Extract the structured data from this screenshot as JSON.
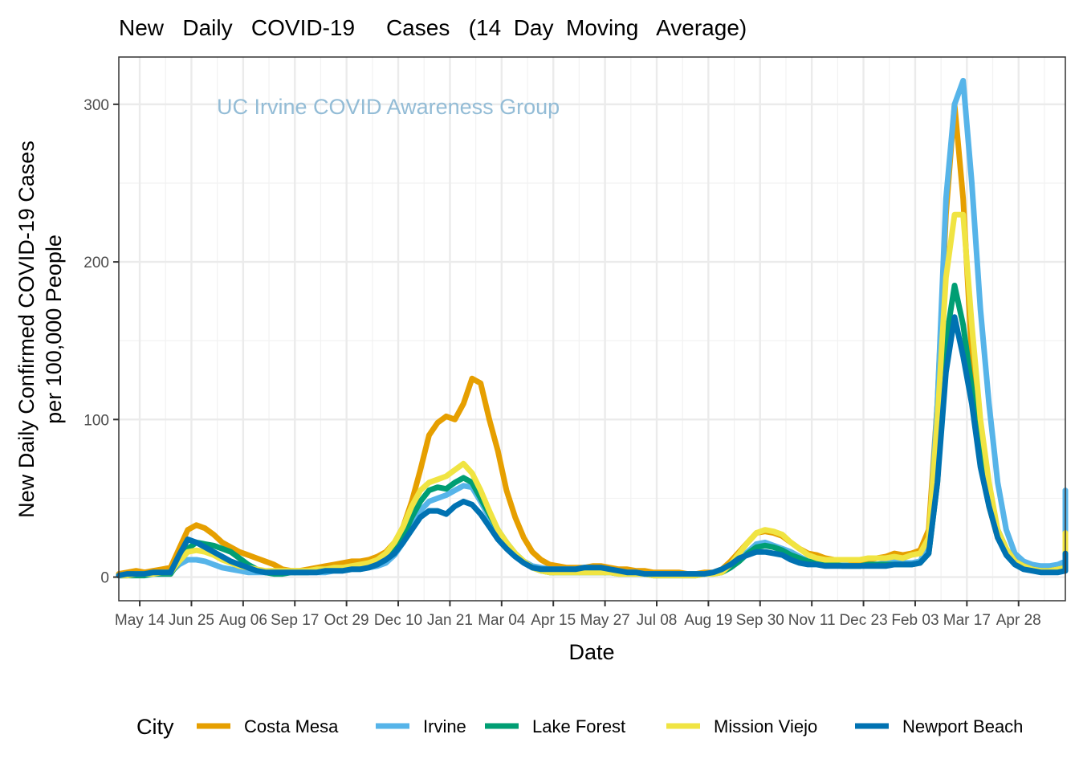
{
  "chart_data": {
    "type": "line",
    "title": "New   Daily   COVID-19     Cases   (14  Day  Moving   Average)",
    "xlabel": "Date",
    "ylabel_lines": [
      "New Daily Confirmed COVID-19 Cases",
      "per 100,000 People"
    ],
    "annotation": "UC Irvine COVID Awareness Group",
    "x_start_date": "2020-04-27",
    "x_step_days": 7,
    "xlim_days": [
      0,
      769
    ],
    "ylim": [
      -15,
      330
    ],
    "yticks": [
      0,
      100,
      200,
      300
    ],
    "ygrid_minor": [
      50,
      150,
      250
    ],
    "xticks": [
      {
        "day": 17,
        "label": "May 14"
      },
      {
        "day": 59,
        "label": "Jun 25"
      },
      {
        "day": 101,
        "label": "Aug 06"
      },
      {
        "day": 143,
        "label": "Sep 17"
      },
      {
        "day": 185,
        "label": "Oct 29"
      },
      {
        "day": 227,
        "label": "Dec 10"
      },
      {
        "day": 269,
        "label": "Jan 21"
      },
      {
        "day": 311,
        "label": "Mar 04"
      },
      {
        "day": 353,
        "label": "Apr 15"
      },
      {
        "day": 395,
        "label": "May 27"
      },
      {
        "day": 437,
        "label": "Jul 08"
      },
      {
        "day": 479,
        "label": "Aug 19"
      },
      {
        "day": 521,
        "label": "Sep 30"
      },
      {
        "day": 563,
        "label": "Nov 11"
      },
      {
        "day": 605,
        "label": "Dec 23"
      },
      {
        "day": 647,
        "label": "Feb 03"
      },
      {
        "day": 689,
        "label": "Mar 17"
      },
      {
        "day": 731,
        "label": "Apr 28"
      }
    ],
    "grid": true,
    "legend": {
      "title": "City",
      "position": "bottom"
    },
    "series": [
      {
        "name": "Costa Mesa",
        "color": "#E69F00",
        "values": [
          2,
          3,
          4,
          3,
          4,
          5,
          6,
          18,
          30,
          33,
          31,
          27,
          22,
          19,
          16,
          14,
          12,
          10,
          8,
          5,
          4,
          4,
          5,
          6,
          7,
          8,
          9,
          10,
          10,
          11,
          13,
          16,
          22,
          32,
          48,
          68,
          90,
          98,
          102,
          100,
          110,
          126,
          123,
          100,
          80,
          55,
          38,
          25,
          16,
          11,
          8,
          7,
          6,
          6,
          6,
          7,
          7,
          6,
          5,
          5,
          4,
          4,
          3,
          3,
          3,
          3,
          2,
          2,
          3,
          3,
          5,
          10,
          16,
          22,
          28,
          29,
          28,
          26,
          22,
          18,
          15,
          14,
          12,
          11,
          10,
          10,
          10,
          11,
          12,
          13,
          15,
          14,
          15,
          17,
          30,
          110,
          230,
          300,
          240,
          140,
          80,
          45,
          25,
          15,
          10,
          7,
          6,
          5,
          5,
          6,
          8,
          9,
          10,
          12,
          15,
          18,
          22
        ]
      },
      {
        "name": "Irvine",
        "color": "#56B4E9",
        "values": [
          1,
          1,
          2,
          2,
          2,
          3,
          3,
          8,
          11,
          11,
          10,
          8,
          6,
          5,
          4,
          3,
          3,
          3,
          3,
          3,
          3,
          3,
          3,
          3,
          3,
          4,
          4,
          5,
          5,
          6,
          7,
          9,
          14,
          22,
          32,
          42,
          48,
          50,
          52,
          55,
          58,
          57,
          48,
          38,
          28,
          20,
          14,
          10,
          7,
          6,
          5,
          5,
          5,
          5,
          6,
          6,
          5,
          4,
          3,
          3,
          3,
          2,
          2,
          2,
          2,
          2,
          2,
          2,
          2,
          3,
          4,
          8,
          12,
          16,
          21,
          22,
          20,
          18,
          16,
          13,
          10,
          9,
          8,
          8,
          8,
          7,
          7,
          8,
          8,
          9,
          10,
          9,
          9,
          10,
          20,
          110,
          240,
          300,
          315,
          250,
          170,
          110,
          60,
          30,
          15,
          10,
          8,
          7,
          7,
          8,
          10,
          12,
          15,
          18,
          22,
          28,
          35,
          44,
          52,
          55
        ]
      },
      {
        "name": "Lake Forest",
        "color": "#009E73",
        "values": [
          1,
          1,
          1,
          1,
          2,
          2,
          2,
          10,
          18,
          22,
          21,
          20,
          18,
          16,
          12,
          8,
          5,
          3,
          2,
          2,
          3,
          3,
          3,
          4,
          4,
          5,
          5,
          6,
          6,
          7,
          9,
          12,
          17,
          26,
          38,
          48,
          55,
          57,
          56,
          60,
          63,
          60,
          50,
          40,
          30,
          22,
          15,
          10,
          6,
          4,
          3,
          3,
          3,
          3,
          3,
          3,
          3,
          3,
          2,
          2,
          2,
          2,
          1,
          1,
          1,
          1,
          1,
          1,
          2,
          2,
          3,
          6,
          10,
          15,
          19,
          20,
          19,
          17,
          14,
          12,
          10,
          9,
          8,
          8,
          7,
          7,
          7,
          8,
          8,
          8,
          8,
          8,
          8,
          9,
          15,
          60,
          150,
          185,
          160,
          120,
          80,
          50,
          30,
          18,
          10,
          7,
          5,
          4,
          4,
          5,
          6,
          7,
          8,
          10,
          13,
          16,
          20,
          22
        ]
      },
      {
        "name": "Mission Viejo",
        "color": "#F0E442",
        "values": [
          1,
          1,
          2,
          2,
          2,
          3,
          3,
          10,
          16,
          17,
          16,
          14,
          11,
          9,
          7,
          6,
          5,
          4,
          4,
          4,
          4,
          4,
          4,
          5,
          5,
          6,
          6,
          7,
          8,
          9,
          11,
          15,
          22,
          32,
          45,
          55,
          60,
          62,
          64,
          68,
          72,
          66,
          55,
          42,
          30,
          22,
          15,
          10,
          6,
          4,
          3,
          3,
          3,
          3,
          3,
          3,
          3,
          3,
          2,
          2,
          2,
          2,
          1,
          1,
          1,
          1,
          1,
          1,
          2,
          2,
          3,
          8,
          15,
          22,
          28,
          30,
          29,
          27,
          22,
          18,
          14,
          12,
          11,
          11,
          11,
          11,
          11,
          12,
          12,
          12,
          13,
          12,
          14,
          15,
          25,
          100,
          190,
          230,
          230,
          160,
          100,
          60,
          30,
          18,
          10,
          7,
          5,
          4,
          4,
          5,
          6,
          8,
          10,
          12,
          16,
          20,
          25,
          28
        ]
      },
      {
        "name": "Newport Beach",
        "color": "#0072B2",
        "values": [
          1,
          2,
          2,
          2,
          3,
          3,
          3,
          14,
          24,
          22,
          19,
          16,
          13,
          10,
          8,
          6,
          4,
          3,
          3,
          3,
          3,
          3,
          3,
          3,
          4,
          4,
          4,
          5,
          5,
          6,
          8,
          11,
          15,
          22,
          30,
          38,
          42,
          42,
          40,
          45,
          48,
          46,
          40,
          32,
          24,
          18,
          13,
          9,
          6,
          5,
          5,
          5,
          5,
          5,
          6,
          6,
          6,
          5,
          4,
          3,
          3,
          2,
          2,
          2,
          2,
          2,
          2,
          2,
          2,
          3,
          5,
          8,
          12,
          14,
          16,
          16,
          15,
          14,
          11,
          9,
          8,
          8,
          7,
          7,
          7,
          7,
          7,
          7,
          7,
          7,
          8,
          8,
          8,
          9,
          15,
          60,
          130,
          165,
          140,
          110,
          70,
          45,
          25,
          14,
          8,
          5,
          4,
          3,
          3,
          3,
          4,
          5,
          6,
          7,
          8,
          10,
          12,
          14,
          15
        ]
      }
    ]
  }
}
